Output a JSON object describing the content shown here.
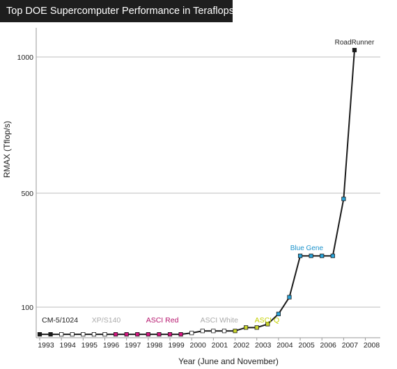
{
  "title": "Top DOE Supercomputer Performance in Teraflops",
  "chart_data": {
    "type": "line",
    "title": "Top DOE Supercomputer Performance in Teraflops",
    "xlabel": "Year (June and November)",
    "ylabel": "RMAX (Tflop/s)",
    "x_ticks": [
      "1993",
      "1994",
      "1995",
      "1996",
      "1997",
      "1998",
      "1999",
      "2000",
      "2001",
      "2002",
      "2003",
      "2004",
      "2005",
      "2006",
      "2007",
      "2008"
    ],
    "y_ticks": [
      100,
      500,
      1000
    ],
    "grid": true,
    "x": [
      1993.0,
      1993.5,
      1994.0,
      1994.5,
      1995.0,
      1995.5,
      1996.0,
      1996.5,
      1997.0,
      1997.5,
      1998.0,
      1998.5,
      1999.0,
      1999.5,
      2000.0,
      2000.5,
      2001.0,
      2001.5,
      2002.0,
      2002.5,
      2003.0,
      2003.5,
      2004.0,
      2004.5,
      2005.0,
      2005.5,
      2006.0,
      2006.5,
      2007.0,
      2007.5
    ],
    "y": [
      60,
      60,
      60,
      60,
      60,
      60,
      60,
      60,
      60,
      60,
      60,
      60,
      60,
      60,
      62,
      65,
      65,
      65,
      65,
      70,
      70,
      75,
      90,
      135,
      280,
      280,
      280,
      280,
      480,
      1026
    ],
    "point_colors": [
      "#1a1a1a",
      "#1a1a1a",
      "#ffffff",
      "#ffffff",
      "#ffffff",
      "#ffffff",
      "#ffffff",
      "#d4157f",
      "#d4157f",
      "#d4157f",
      "#d4157f",
      "#d4157f",
      "#d4157f",
      "#d4157f",
      "#ffffff",
      "#ffffff",
      "#ffffff",
      "#ffffff",
      "#c8d42a",
      "#c8d42a",
      "#c8d42a",
      "#c8d42a",
      "#2aa3d8",
      "#2aa3d8",
      "#2aa3d8",
      "#2aa3d8",
      "#2aa3d8",
      "#2aa3d8",
      "#2aa3d8",
      "#1a1a1a"
    ],
    "ylim": [
      55,
      1110
    ],
    "xlim": [
      1992.85,
      2008.1
    ],
    "era_labels": [
      {
        "text": "CM-5/1024",
        "x": 1993.1,
        "color": "#1a1a1a"
      },
      {
        "text": "XP/S140",
        "x": 1995.4,
        "color": "#aaaaaa"
      },
      {
        "text": "ASCI Red",
        "x": 1997.9,
        "color": "#b5156d"
      },
      {
        "text": "ASCI White",
        "x": 2000.4,
        "color": "#aaaaaa"
      },
      {
        "text": "ASCI Q",
        "x": 2002.9,
        "color": "#c4d000"
      }
    ],
    "peak_labels": [
      {
        "text": "Blue Gene",
        "x": 2005.3,
        "y": 280,
        "color": "#1d93cc"
      },
      {
        "text": "RoadRunner",
        "x": 2007.5,
        "y": 1026,
        "color": "#222222"
      }
    ]
  }
}
